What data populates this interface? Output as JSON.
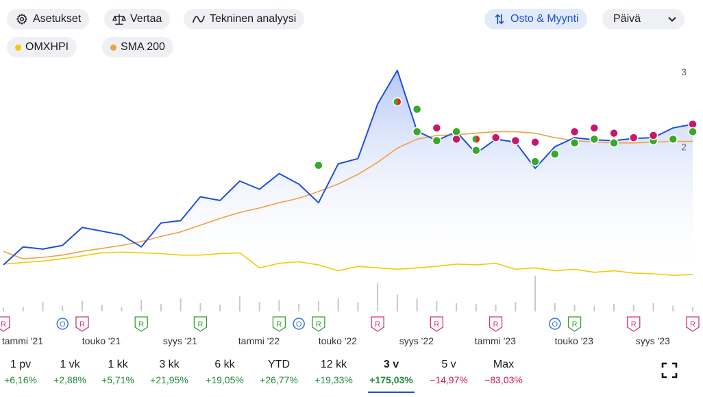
{
  "toolbar": {
    "settings_label": "Asetukset",
    "compare_label": "Vertaa",
    "technical_label": "Tekninen analyysi",
    "buy_sell_label": "Osto & Myynti",
    "period_select_value": "Päivä"
  },
  "overlays": [
    {
      "label": "OMXHPI",
      "color": "#f2cb05"
    },
    {
      "label": "SMA 200",
      "color": "#f2a03d"
    }
  ],
  "chart_data": {
    "type": "line",
    "x": [
      "2021-01",
      "2021-02",
      "2021-03",
      "2021-04",
      "2021-05",
      "2021-06",
      "2021-07",
      "2021-08",
      "2021-09",
      "2021-10",
      "2021-11",
      "2021-12",
      "2022-01",
      "2022-02",
      "2022-03",
      "2022-04",
      "2022-05",
      "2022-06",
      "2022-07",
      "2022-08",
      "2022-09",
      "2022-10",
      "2022-11",
      "2022-12",
      "2023-01",
      "2023-02",
      "2023-03",
      "2023-04",
      "2023-05",
      "2023-06",
      "2023-07",
      "2023-08",
      "2023-09",
      "2023-10",
      "2023-11",
      "2023-12"
    ],
    "series": [
      {
        "key": "price",
        "color": "#1b4fe0",
        "values": [
          0.42,
          0.66,
          0.63,
          0.68,
          0.92,
          0.87,
          0.82,
          0.66,
          0.98,
          1.01,
          1.33,
          1.28,
          1.54,
          1.43,
          1.64,
          1.5,
          1.25,
          1.77,
          1.84,
          2.57,
          3.02,
          2.21,
          2.08,
          2.2,
          1.91,
          2.1,
          2.06,
          1.71,
          2.0,
          2.12,
          2.09,
          2.08,
          2.11,
          2.12,
          2.25,
          2.3
        ]
      },
      {
        "key": "SMA 200",
        "color": "#f2a03d",
        "values": [
          0.6,
          0.5,
          0.52,
          0.55,
          0.6,
          0.64,
          0.68,
          0.73,
          0.8,
          0.86,
          0.95,
          1.04,
          1.12,
          1.18,
          1.25,
          1.31,
          1.4,
          1.5,
          1.63,
          1.79,
          1.98,
          2.1,
          2.15,
          2.16,
          2.18,
          2.2,
          2.2,
          2.18,
          2.12,
          2.08,
          2.06,
          2.05,
          2.05,
          2.06,
          2.07,
          2.07
        ]
      },
      {
        "key": "OMXHPI",
        "color": "#f2cb05",
        "values": [
          0.43,
          0.45,
          0.47,
          0.5,
          0.54,
          0.58,
          0.59,
          0.58,
          0.57,
          0.55,
          0.55,
          0.57,
          0.58,
          0.38,
          0.44,
          0.46,
          0.42,
          0.34,
          0.4,
          0.38,
          0.36,
          0.38,
          0.4,
          0.43,
          0.42,
          0.44,
          0.36,
          0.38,
          0.34,
          0.36,
          0.32,
          0.34,
          0.31,
          0.3,
          0.28,
          0.29
        ]
      }
    ],
    "ylim": [
      0.3,
      3.0
    ],
    "y_ticks": [
      {
        "value": 3,
        "label": "3"
      },
      {
        "value": 2,
        "label": "2"
      }
    ],
    "x_ticks": [
      {
        "x": "2021-01",
        "label": "tammi '21"
      },
      {
        "x": "2021-05",
        "label": "touko '21"
      },
      {
        "x": "2021-09",
        "label": "syys '21"
      },
      {
        "x": "2022-01",
        "label": "tammi '22"
      },
      {
        "x": "2022-05",
        "label": "touko '22"
      },
      {
        "x": "2022-09",
        "label": "syys '22"
      },
      {
        "x": "2023-01",
        "label": "tammi '23"
      },
      {
        "x": "2023-05",
        "label": "touko '23"
      },
      {
        "x": "2023-09",
        "label": "syys '23"
      }
    ],
    "event_markers": [
      {
        "x": "2021-01",
        "label": "R",
        "color": "#d6336c"
      },
      {
        "x": "2021-04",
        "label": "O",
        "color": "#3b6fd8"
      },
      {
        "x": "2021-05",
        "label": "R",
        "color": "#d6336c"
      },
      {
        "x": "2021-08",
        "label": "R",
        "color": "#2ea12e"
      },
      {
        "x": "2021-11",
        "label": "R",
        "color": "#2ea12e"
      },
      {
        "x": "2022-03",
        "label": "R",
        "color": "#2ea12e"
      },
      {
        "x": "2022-04",
        "label": "O",
        "color": "#3b6fd8"
      },
      {
        "x": "2022-05",
        "label": "R",
        "color": "#2ea12e"
      },
      {
        "x": "2022-08",
        "label": "R",
        "color": "#d6336c"
      },
      {
        "x": "2022-11",
        "label": "R",
        "color": "#d6336c"
      },
      {
        "x": "2023-02",
        "label": "R",
        "color": "#d6336c"
      },
      {
        "x": "2023-05",
        "label": "O",
        "color": "#3b6fd8"
      },
      {
        "x": "2023-06",
        "label": "R",
        "color": "#2ea12e"
      },
      {
        "x": "2023-09",
        "label": "R",
        "color": "#d6336c"
      },
      {
        "x": "2023-12",
        "label": "R",
        "color": "#d6336c"
      }
    ],
    "trade_markers": [
      {
        "x": "2022-05",
        "y": 1.75,
        "side": "buy"
      },
      {
        "x": "2022-09",
        "y": 2.6,
        "side": "mixed"
      },
      {
        "x": "2022-10",
        "y": 2.5,
        "side": "buy"
      },
      {
        "x": "2022-10",
        "y": 2.2,
        "side": "buy"
      },
      {
        "x": "2022-11",
        "y": 2.08,
        "side": "buy"
      },
      {
        "x": "2022-11",
        "y": 2.25,
        "side": "sell"
      },
      {
        "x": "2022-12",
        "y": 2.2,
        "side": "buy"
      },
      {
        "x": "2022-12",
        "y": 2.1,
        "side": "sell"
      },
      {
        "x": "2023-01",
        "y": 1.95,
        "side": "buy"
      },
      {
        "x": "2023-01",
        "y": 2.1,
        "side": "mixed"
      },
      {
        "x": "2023-02",
        "y": 2.12,
        "side": "sell"
      },
      {
        "x": "2023-03",
        "y": 2.08,
        "side": "sell"
      },
      {
        "x": "2023-04",
        "y": 2.06,
        "side": "sell"
      },
      {
        "x": "2023-04",
        "y": 1.8,
        "side": "buy"
      },
      {
        "x": "2023-05",
        "y": 1.9,
        "side": "buy"
      },
      {
        "x": "2023-06",
        "y": 2.05,
        "side": "buy"
      },
      {
        "x": "2023-06",
        "y": 2.2,
        "side": "sell"
      },
      {
        "x": "2023-07",
        "y": 2.1,
        "side": "buy"
      },
      {
        "x": "2023-07",
        "y": 2.25,
        "side": "sell"
      },
      {
        "x": "2023-08",
        "y": 2.05,
        "side": "buy"
      },
      {
        "x": "2023-08",
        "y": 2.18,
        "side": "sell"
      },
      {
        "x": "2023-09",
        "y": 2.12,
        "side": "sell"
      },
      {
        "x": "2023-10",
        "y": 2.08,
        "side": "buy"
      },
      {
        "x": "2023-10",
        "y": 2.15,
        "side": "sell"
      },
      {
        "x": "2023-11",
        "y": 2.1,
        "side": "buy"
      },
      {
        "x": "2023-12",
        "y": 2.3,
        "side": "sell"
      },
      {
        "x": "2023-12",
        "y": 2.2,
        "side": "buy"
      }
    ],
    "volume": [
      0.1,
      0.12,
      0.25,
      0.15,
      0.28,
      0.18,
      0.12,
      0.3,
      0.2,
      0.35,
      0.22,
      0.18,
      0.4,
      0.25,
      0.3,
      0.2,
      0.28,
      0.35,
      0.25,
      0.75,
      0.45,
      0.35,
      0.28,
      0.22,
      0.2,
      0.18,
      0.25,
      0.95,
      0.22,
      0.18,
      0.15,
      0.2,
      0.18,
      0.22,
      0.15,
      0.12
    ]
  },
  "ranges": [
    {
      "label": "1 pv",
      "change": "+6,16%",
      "tone": "pos"
    },
    {
      "label": "1 vk",
      "change": "+2,88%",
      "tone": "pos"
    },
    {
      "label": "1 kk",
      "change": "+5,71%",
      "tone": "pos"
    },
    {
      "label": "3 kk",
      "change": "+21,95%",
      "tone": "pos"
    },
    {
      "label": "6 kk",
      "change": "+19,05%",
      "tone": "pos"
    },
    {
      "label": "YTD",
      "change": "+26,77%",
      "tone": "pos"
    },
    {
      "label": "12 kk",
      "change": "+19,33%",
      "tone": "pos"
    },
    {
      "label": "3 v",
      "change": "+175,03%",
      "tone": "pos",
      "selected": true
    },
    {
      "label": "5 v",
      "change": "−14,97%",
      "tone": "neg"
    },
    {
      "label": "Max",
      "change": "−83,03%",
      "tone": "neg"
    }
  ]
}
